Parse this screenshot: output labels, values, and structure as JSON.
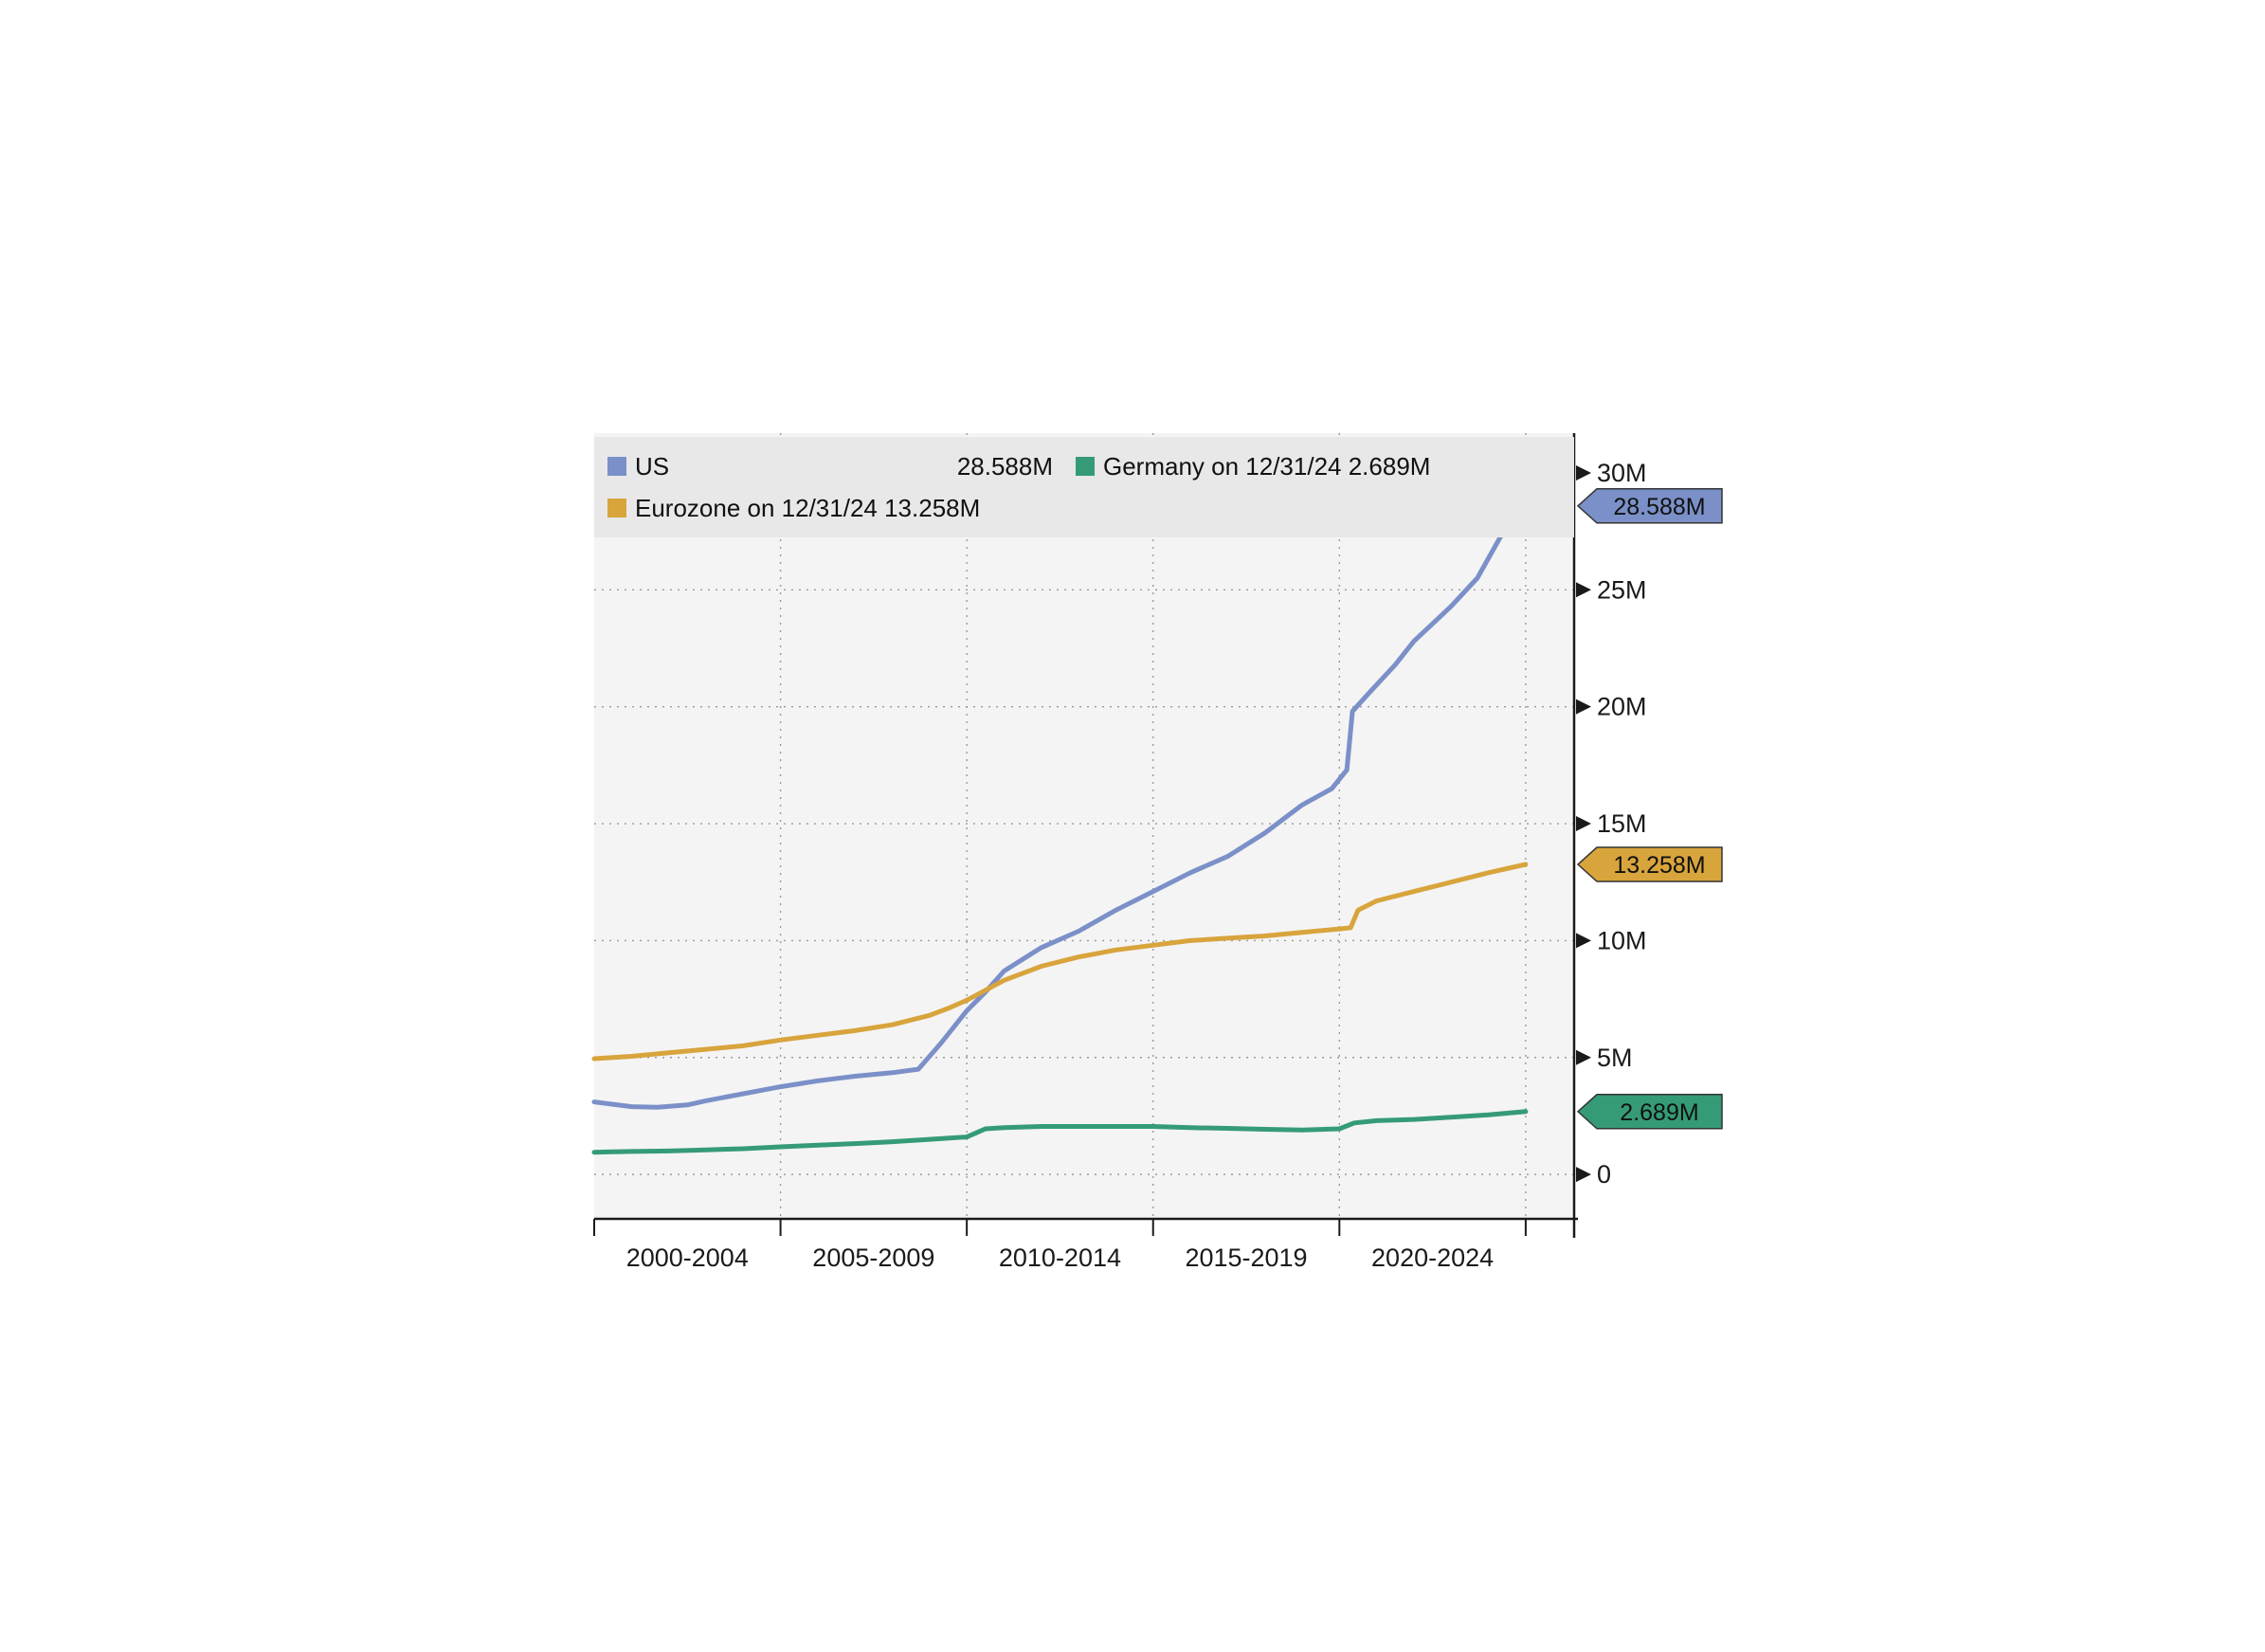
{
  "page": {
    "background": "#ffffff"
  },
  "legend": {
    "us_label": "US",
    "us_value": "28.588M",
    "germany_label": "Germany on 12/31/24 2.689M",
    "eurozone_label": "Eurozone on 12/31/24 13.258M"
  },
  "chart_data": {
    "type": "line",
    "title": "",
    "unit": "millions (M)",
    "x_range": [
      2000,
      2026.3
    ],
    "ylim": [
      -1.9,
      31.7
    ],
    "y_ticks": [
      0,
      5,
      10,
      15,
      20,
      25,
      30
    ],
    "y_tick_labels": [
      "0",
      "5M",
      "10M",
      "15M",
      "20M",
      "25M",
      "30M"
    ],
    "x_boundaries": [
      2000,
      2005,
      2010,
      2015,
      2020,
      2025
    ],
    "x_period_labels": [
      "2000-2004",
      "2005-2009",
      "2010-2014",
      "2015-2019",
      "2020-2024"
    ],
    "grid": "dotted",
    "legend_position": "top-inside",
    "colors": {
      "plot_bg": "#f4f4f4",
      "legend_bg": "#e8e8e8",
      "grid": "#9a9a9a",
      "axis": "#1a1a1a",
      "text": "#1a1a1a",
      "us": "#7B90C8",
      "eurozone": "#D8A43C",
      "germany": "#359B76"
    },
    "series": [
      {
        "name": "US",
        "color": "#7B90C8",
        "last_label": "28.588M",
        "x": [
          2000,
          2000.5,
          2001,
          2001.7,
          2002.5,
          2003,
          2004,
          2005,
          2006,
          2007,
          2008,
          2008.7,
          2009.3,
          2010,
          2010.5,
          2011,
          2012,
          2013,
          2014,
          2015,
          2016,
          2017,
          2018,
          2019,
          2019.8,
          2020.2,
          2020.35,
          2020.8,
          2021.5,
          2022,
          2023,
          2023.7,
          2024.3,
          2024.7,
          2025
        ],
        "values": [
          3.1,
          3.0,
          2.9,
          2.87,
          2.97,
          3.15,
          3.45,
          3.75,
          4.0,
          4.2,
          4.35,
          4.5,
          5.6,
          7.0,
          7.8,
          8.7,
          9.7,
          10.4,
          11.3,
          12.1,
          12.9,
          13.6,
          14.6,
          15.8,
          16.5,
          17.3,
          19.8,
          20.6,
          21.8,
          22.8,
          24.3,
          25.5,
          27.2,
          28.3,
          28.588
        ]
      },
      {
        "name": "Eurozone",
        "color": "#D8A43C",
        "last_label": "13.258M",
        "x": [
          2000,
          2001,
          2002,
          2003,
          2004,
          2005,
          2006,
          2007,
          2008,
          2009,
          2009.5,
          2010,
          2011,
          2012,
          2013,
          2014,
          2015,
          2016,
          2017,
          2018,
          2019,
          2020,
          2020.3,
          2020.5,
          2021,
          2022,
          2023,
          2024,
          2025
        ],
        "values": [
          4.95,
          5.05,
          5.2,
          5.35,
          5.5,
          5.75,
          5.95,
          6.15,
          6.4,
          6.8,
          7.1,
          7.45,
          8.3,
          8.9,
          9.3,
          9.6,
          9.8,
          10.0,
          10.1,
          10.2,
          10.35,
          10.5,
          10.55,
          11.3,
          11.7,
          12.1,
          12.5,
          12.9,
          13.258
        ]
      },
      {
        "name": "Germany",
        "color": "#359B76",
        "last_label": "2.689M",
        "x": [
          2000,
          2001,
          2002,
          2003,
          2004,
          2005,
          2006,
          2007,
          2008,
          2009,
          2010,
          2010.5,
          2011,
          2012,
          2013,
          2014,
          2015,
          2016,
          2017,
          2018,
          2019,
          2020,
          2020.4,
          2021,
          2022,
          2023,
          2024,
          2025
        ],
        "values": [
          0.95,
          0.98,
          1.0,
          1.05,
          1.1,
          1.18,
          1.25,
          1.32,
          1.4,
          1.5,
          1.6,
          1.95,
          2.0,
          2.05,
          2.05,
          2.05,
          2.05,
          2.0,
          1.97,
          1.93,
          1.9,
          1.95,
          2.2,
          2.3,
          2.35,
          2.45,
          2.55,
          2.689
        ]
      }
    ]
  }
}
